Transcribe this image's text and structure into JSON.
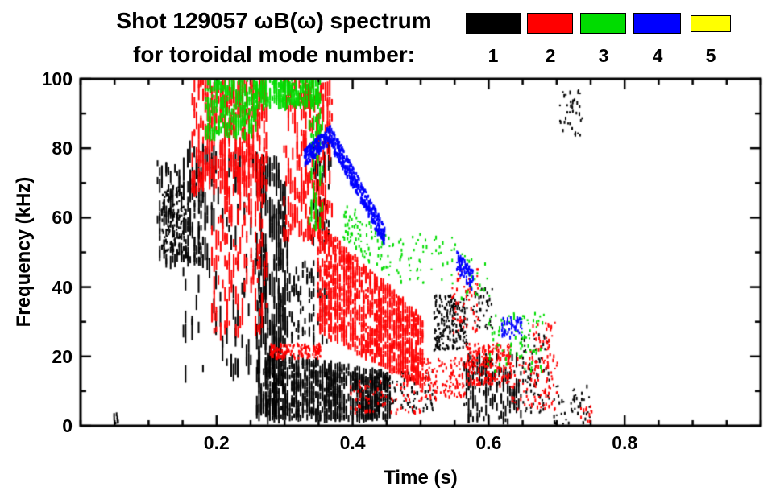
{
  "title": {
    "line1": "Shot 129057 ωB(ω) spectrum",
    "line2": "for toroidal mode number:"
  },
  "legend": {
    "items": [
      {
        "label": "1",
        "color": "#000000"
      },
      {
        "label": "2",
        "color": "#ff0000"
      },
      {
        "label": "3",
        "color": "#00dc00"
      },
      {
        "label": "4",
        "color": "#0000ff"
      },
      {
        "label": "5",
        "color": "#ffff00"
      }
    ]
  },
  "chart_data": {
    "type": "scatter",
    "title": "Shot 129057 ωB(ω) spectrum for toroidal mode number",
    "xlabel": "Time (s)",
    "ylabel": "Frequency (kHz)",
    "xlim": [
      0.0,
      1.0
    ],
    "ylim": [
      0,
      100
    ],
    "xticks": [
      0.2,
      0.4,
      0.6,
      0.8
    ],
    "xtick_labels": [
      "0.2",
      "0.4",
      "0.6",
      "0.8"
    ],
    "yticks": [
      0,
      20,
      40,
      60,
      80,
      100
    ],
    "ytick_labels": [
      "0",
      "20",
      "40",
      "60",
      "80",
      "100"
    ],
    "xminor": 0.05,
    "yminor": 10,
    "grid": false,
    "legend_position": "top-right",
    "series": [
      {
        "name": "n=1",
        "color": "#000000",
        "clusters": [
          {
            "t": [
              0.112,
              0.178
            ],
            "f": [
              47,
              76
            ],
            "n": 170,
            "mode": "streaks",
            "len": [
              6,
              18
            ]
          },
          {
            "t": [
              0.118,
              0.152
            ],
            "f": [
              50,
              70
            ],
            "n": 120,
            "mode": "dots"
          },
          {
            "t": [
              0.15,
              0.262
            ],
            "f": [
              14,
              80
            ],
            "n": 110,
            "mode": "streaks",
            "len": [
              8,
              30
            ]
          },
          {
            "t": [
              0.258,
              0.302
            ],
            "f": [
              3,
              76
            ],
            "n": 230,
            "mode": "streaks",
            "len": [
              10,
              34
            ]
          },
          {
            "t": [
              0.268,
              0.455
            ],
            "f": [
              2,
              21
            ],
            "f2": [
              2,
              15
            ],
            "n": 900,
            "mode": "streaks",
            "len": [
              4,
              12
            ]
          },
          {
            "t": [
              0.3,
              0.362
            ],
            "f": [
              24,
              47
            ],
            "n": 80,
            "mode": "streaks",
            "len": [
              5,
              14
            ]
          },
          {
            "t": [
              0.338,
              0.366
            ],
            "f": [
              52,
              84
            ],
            "n": 50,
            "mode": "streaks",
            "len": [
              5,
              16
            ]
          },
          {
            "t": [
              0.518,
              0.568
            ],
            "f": [
              22,
              38
            ],
            "n": 200,
            "mode": "dots"
          },
          {
            "t": [
              0.563,
              0.648
            ],
            "f": [
              1,
              20
            ],
            "n": 160,
            "mode": "streaks",
            "len": [
              4,
              14
            ]
          },
          {
            "t": [
              0.645,
              0.688
            ],
            "f": [
              4,
              27
            ],
            "n": 70,
            "mode": "dots"
          },
          {
            "t": [
              0.695,
              0.748
            ],
            "f": [
              0,
              12
            ],
            "n": 45,
            "mode": "dots"
          },
          {
            "t": [
              0.703,
              0.737
            ],
            "f": [
              84,
              97
            ],
            "n": 40,
            "mode": "dots"
          },
          {
            "t": [
              0.048,
              0.06
            ],
            "f": [
              1,
              4
            ],
            "n": 8,
            "mode": "dots"
          },
          {
            "t": [
              0.445,
              0.52
            ],
            "f": [
              4,
              16
            ],
            "n": 80,
            "mode": "dots"
          },
          {
            "t": [
              0.575,
              0.605
            ],
            "f": [
              28,
              40
            ],
            "n": 40,
            "mode": "dots"
          }
        ]
      },
      {
        "name": "n=2",
        "color": "#ff0000",
        "clusters": [
          {
            "t": [
              0.163,
              0.272
            ],
            "f": [
              67,
              100
            ],
            "n": 420,
            "mode": "streaks",
            "len": [
              6,
              22
            ]
          },
          {
            "t": [
              0.192,
              0.272
            ],
            "f": [
              27,
              67
            ],
            "n": 130,
            "mode": "streaks",
            "len": [
              6,
              24
            ]
          },
          {
            "t": [
              0.298,
              0.368
            ],
            "f": [
              54,
              100
            ],
            "n": 230,
            "mode": "streaks",
            "len": [
              6,
              22
            ]
          },
          {
            "t": [
              0.278,
              0.352
            ],
            "f": [
              20,
              24
            ],
            "n": 150,
            "mode": "dots"
          },
          {
            "t": [
              0.348,
              0.502
            ],
            "f": [
              27,
              59
            ],
            "f2": [
              11,
              31
            ],
            "n": 1300,
            "mode": "streaks",
            "len": [
              3,
              10
            ]
          },
          {
            "t": [
              0.5,
              0.565
            ],
            "f": [
              8,
              20
            ],
            "n": 120,
            "mode": "dots"
          },
          {
            "t": [
              0.565,
              0.632
            ],
            "f": [
              12,
              24
            ],
            "n": 240,
            "mode": "dots"
          },
          {
            "t": [
              0.63,
              0.7
            ],
            "f": [
              5,
              20
            ],
            "n": 100,
            "mode": "dots"
          },
          {
            "t": [
              0.395,
              0.5
            ],
            "f": [
              4,
              14
            ],
            "n": 80,
            "mode": "dots"
          },
          {
            "t": [
              0.545,
              0.585
            ],
            "f": [
              27,
              46
            ],
            "n": 60,
            "mode": "dots"
          },
          {
            "t": [
              0.66,
              0.698
            ],
            "f": [
              20,
              30
            ],
            "n": 35,
            "mode": "dots"
          },
          {
            "t": [
              0.728,
              0.752
            ],
            "f": [
              0,
              6
            ],
            "n": 12,
            "mode": "dots"
          }
        ]
      },
      {
        "name": "n=3",
        "color": "#00dc00",
        "clusters": [
          {
            "t": [
              0.183,
              0.258
            ],
            "f": [
              83,
              100
            ],
            "n": 240,
            "mode": "streaks",
            "len": [
              4,
              14
            ]
          },
          {
            "t": [
              0.255,
              0.352
            ],
            "f": [
              92,
              100
            ],
            "n": 260,
            "mode": "streaks",
            "len": [
              4,
              12
            ]
          },
          {
            "t": [
              0.335,
              0.356
            ],
            "f": [
              57,
              95
            ],
            "n": 60,
            "mode": "streaks",
            "len": [
              5,
              16
            ]
          },
          {
            "t": [
              0.385,
              0.452
            ],
            "f": [
              54,
              66
            ],
            "f2": [
              43,
              55
            ],
            "n": 90,
            "mode": "dots"
          },
          {
            "t": [
              0.452,
              0.552
            ],
            "f": [
              41,
              56
            ],
            "n": 60,
            "mode": "dots"
          },
          {
            "t": [
              0.598,
              0.682
            ],
            "f": [
              16,
              33
            ],
            "n": 80,
            "mode": "dots"
          },
          {
            "t": [
              0.558,
              0.6
            ],
            "f": [
              37,
              50
            ],
            "n": 25,
            "mode": "dots"
          }
        ]
      },
      {
        "name": "n=4",
        "color": "#0000ff",
        "clusters": [
          {
            "t": [
              0.328,
              0.366
            ],
            "f": [
              75,
              80
            ],
            "f2": [
              82,
              87
            ],
            "n": 220,
            "mode": "dots"
          },
          {
            "t": [
              0.366,
              0.446
            ],
            "f": [
              81,
              87
            ],
            "f2": [
              52,
              58
            ],
            "n": 420,
            "mode": "dots"
          },
          {
            "t": [
              0.552,
              0.576
            ],
            "f": [
              45,
              51
            ],
            "f2": [
              39,
              45
            ],
            "n": 90,
            "mode": "dots"
          },
          {
            "t": [
              0.618,
              0.648
            ],
            "f": [
              26,
              32
            ],
            "n": 55,
            "mode": "dots"
          }
        ]
      },
      {
        "name": "n=5",
        "color": "#ffff00",
        "clusters": []
      }
    ]
  }
}
